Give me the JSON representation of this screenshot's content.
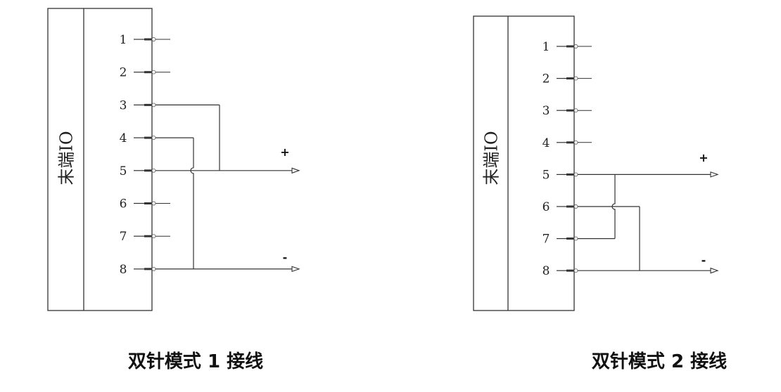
{
  "diagrams": [
    {
      "caption": "双针模式 1 接线",
      "block_label": "末端IO",
      "pins": [
        "1",
        "2",
        "3",
        "4",
        "5",
        "6",
        "7",
        "8"
      ],
      "plus_label": "+",
      "minus_label": "-",
      "plus_pins": [
        "3",
        "5"
      ],
      "minus_pins": [
        "4",
        "8"
      ],
      "plus_output_pin": "5",
      "minus_output_pin": "8"
    },
    {
      "caption": "双针模式 2 接线",
      "block_label": "末端IO",
      "pins": [
        "1",
        "2",
        "3",
        "4",
        "5",
        "6",
        "7",
        "8"
      ],
      "plus_label": "+",
      "minus_label": "-",
      "plus_pins": [
        "5",
        "7"
      ],
      "minus_pins": [
        "6",
        "8"
      ],
      "plus_output_pin": "5",
      "minus_output_pin": "8"
    }
  ],
  "colors": {
    "line": "#333333",
    "text": "#222222"
  }
}
